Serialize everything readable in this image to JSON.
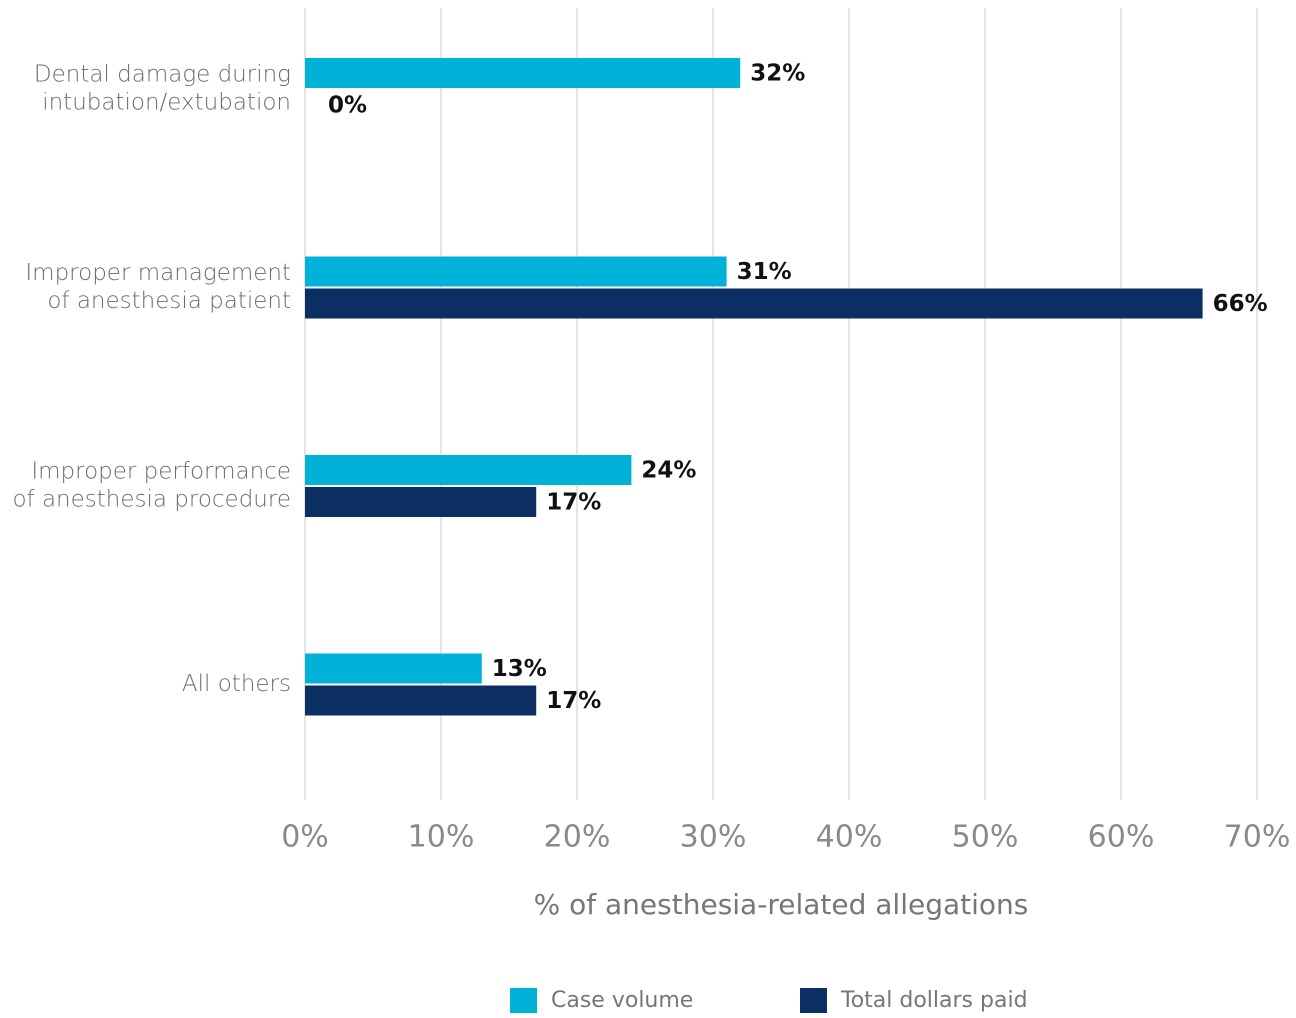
{
  "chart_data": {
    "type": "barh",
    "categories": [
      [
        "Dental damage during",
        "intubation/extubation"
      ],
      [
        "Improper management",
        "of anesthesia patient"
      ],
      [
        "Improper performance",
        "of anesthesia procedure"
      ],
      [
        "All others"
      ]
    ],
    "series": [
      {
        "name": "Case volume",
        "color": "#00b2d8",
        "values": [
          32,
          31,
          24,
          13
        ],
        "value_labels": [
          "32%",
          "31%",
          "24%",
          "13%"
        ]
      },
      {
        "name": "Total dollars paid",
        "color": "#0b2f63",
        "values": [
          0,
          66,
          17,
          17
        ],
        "value_labels": [
          "0%",
          "66%",
          "17%",
          "17%"
        ]
      }
    ],
    "xlabel": "% of anesthesia-related allegations",
    "xlim": [
      0,
      70
    ],
    "xticks": [
      {
        "value": 0,
        "label": "0%"
      },
      {
        "value": 10,
        "label": "10%"
      },
      {
        "value": 20,
        "label": "20%"
      },
      {
        "value": 30,
        "label": "30%"
      },
      {
        "value": 40,
        "label": "40%"
      },
      {
        "value": 50,
        "label": "50%"
      },
      {
        "value": 60,
        "label": "60%"
      },
      {
        "value": 70,
        "label": "70%"
      }
    ],
    "grid": true,
    "legend": "bottom"
  }
}
